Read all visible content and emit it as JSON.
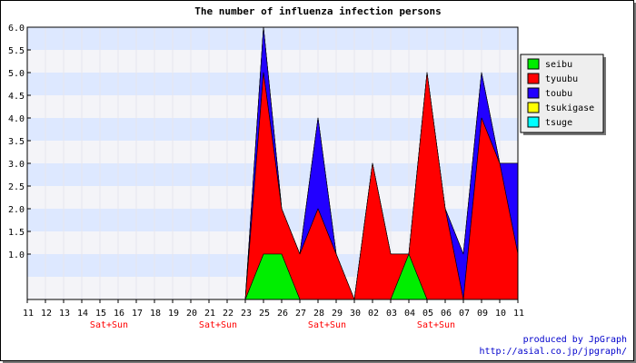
{
  "chart_data": {
    "type": "area",
    "stacked": true,
    "title": "The number of influenza infection persons",
    "categories": [
      "11",
      "12",
      "13",
      "14",
      "15",
      "16",
      "17",
      "18",
      "19",
      "20",
      "21",
      "22",
      "23",
      "25",
      "26",
      "27",
      "28",
      "29",
      "30",
      "02",
      "03",
      "04",
      "05",
      "06",
      "07",
      "09",
      "10",
      "11"
    ],
    "weekend_labels": [
      {
        "category_index": 4,
        "text": "Sat+Sun"
      },
      {
        "category_index": 10,
        "text": "Sat+Sun"
      },
      {
        "category_index": 16,
        "text": "Sat+Sun"
      },
      {
        "category_index": 22,
        "text": "Sat+Sun"
      }
    ],
    "ylim": [
      0,
      6
    ],
    "y_ticks": [
      "1.0",
      "1.5",
      "2.0",
      "2.5",
      "3.0",
      "3.5",
      "4.0",
      "4.5",
      "5.0",
      "5.5",
      "6.0"
    ],
    "y_tick_values": [
      1.0,
      1.5,
      2.0,
      2.5,
      3.0,
      3.5,
      4.0,
      4.5,
      5.0,
      5.5,
      6.0
    ],
    "grid": true,
    "legend_position": "top-right",
    "series": [
      {
        "name": "seibu",
        "color": "#00ee00",
        "values": [
          0,
          0,
          0,
          0,
          0,
          0,
          0,
          0,
          0,
          0,
          0,
          0,
          0,
          1,
          1,
          0,
          0,
          0,
          0,
          0,
          0,
          1,
          0,
          0,
          0,
          0,
          0,
          0
        ]
      },
      {
        "name": "tyuubu",
        "color": "#ff0000",
        "values": [
          0,
          0,
          0,
          0,
          0,
          0,
          0,
          0,
          0,
          0,
          0,
          0,
          0,
          4,
          1,
          1,
          2,
          1,
          0,
          3,
          1,
          0,
          5,
          2,
          0,
          4,
          3,
          1
        ]
      },
      {
        "name": "toubu",
        "color": "#2200ff",
        "values": [
          0,
          0,
          0,
          0,
          0,
          0,
          0,
          0,
          0,
          0,
          0,
          0,
          0,
          1,
          0,
          0,
          2,
          0,
          0,
          0,
          0,
          0,
          0,
          0,
          1,
          1,
          0,
          2
        ]
      },
      {
        "name": "tsukigase",
        "color": "#ffff00",
        "values": [
          0,
          0,
          0,
          0,
          0,
          0,
          0,
          0,
          0,
          0,
          0,
          0,
          0,
          0,
          0,
          0,
          0,
          0,
          0,
          0,
          0,
          0,
          0,
          0,
          0,
          0,
          0,
          0
        ]
      },
      {
        "name": "tsuge",
        "color": "#00ffff",
        "values": [
          0,
          0,
          0,
          0,
          0,
          0,
          0,
          0,
          0,
          0,
          0,
          0,
          0,
          0,
          0,
          0,
          0,
          0,
          0,
          0,
          0,
          0,
          0,
          0,
          0,
          0,
          0,
          0
        ]
      }
    ]
  },
  "footer": {
    "line1": "produced by JpGraph",
    "line2": "http://asial.co.jp/jpgraph/"
  }
}
